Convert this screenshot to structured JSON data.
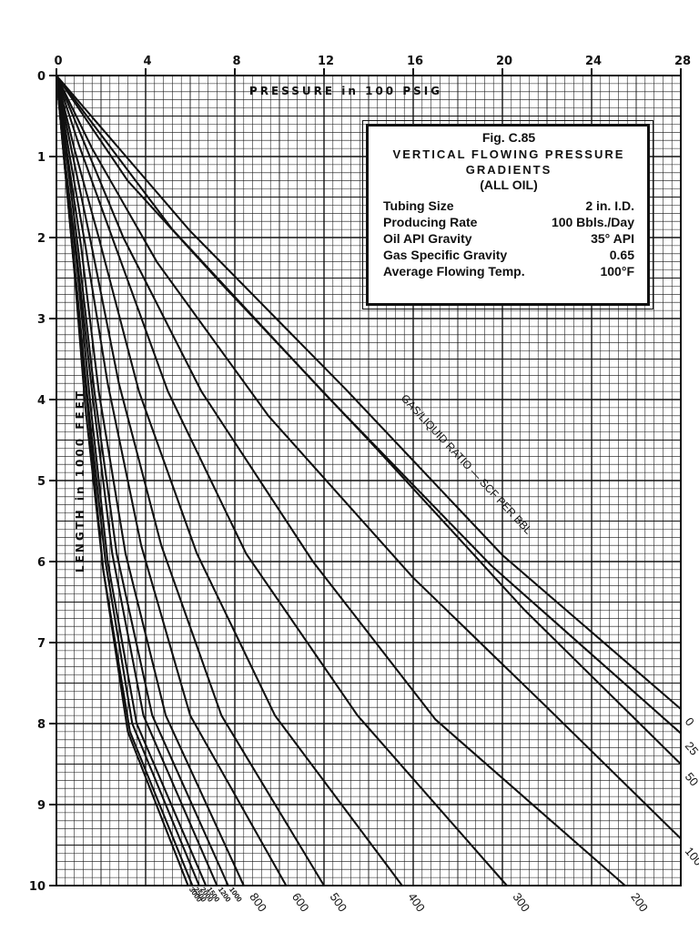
{
  "chart_data": {
    "type": "line",
    "title": "Fig. C.85",
    "subtitle": "VERTICAL FLOWING PRESSURE GRADIENTS",
    "subtitle2": "(ALL OIL)",
    "conditions": [
      {
        "label": "Tubing Size",
        "value": "2 in. I.D."
      },
      {
        "label": "Producing Rate",
        "value": "100 Bbls./Day"
      },
      {
        "label": "Oil API Gravity",
        "value": "35° API"
      },
      {
        "label": "Gas Specific Gravity",
        "value": "0.65"
      },
      {
        "label": "Average Flowing Temp.",
        "value": "100°F"
      }
    ],
    "xlabel": "PRESSURE in 100 PSIG",
    "ylabel": "LENGTH in 1000 FEET",
    "xlim": [
      0,
      28
    ],
    "ylim": [
      0,
      10
    ],
    "x_ticks": [
      "0",
      "4",
      "8",
      "12",
      "16",
      "20",
      "24",
      "28"
    ],
    "y_ticks": [
      "0",
      "1",
      "2",
      "3",
      "4",
      "5",
      "6",
      "7",
      "8",
      "9",
      "10"
    ],
    "y_inverted": true,
    "x_axis_position": "top",
    "grid": true,
    "series_annotation": "GAS/LIQUID RATIO — SCF PER BBL",
    "series": [
      {
        "name": "0",
        "label": "0",
        "points": [
          [
            0,
            0
          ],
          [
            6.0,
            1.92
          ],
          [
            13.0,
            3.88
          ],
          [
            20.0,
            5.92
          ],
          [
            28.0,
            7.82
          ]
        ]
      },
      {
        "name": "25",
        "label": "25",
        "points": [
          [
            0,
            0
          ],
          [
            5.2,
            1.9
          ],
          [
            12.0,
            3.92
          ],
          [
            19.5,
            6.05
          ],
          [
            28.0,
            8.12
          ]
        ]
      },
      {
        "name": "50",
        "label": "50",
        "points": [
          [
            0,
            0
          ],
          [
            3.2,
            1.3
          ],
          [
            7.5,
            2.6
          ],
          [
            14.0,
            4.5
          ],
          [
            21.0,
            6.6
          ],
          [
            28.0,
            8.5
          ]
        ]
      },
      {
        "name": "100",
        "label": "100",
        "points": [
          [
            0,
            0
          ],
          [
            1.6,
            0.9
          ],
          [
            4.5,
            2.3
          ],
          [
            9.5,
            4.2
          ],
          [
            16.0,
            6.2
          ],
          [
            22.0,
            7.8
          ],
          [
            28.0,
            9.42
          ]
        ]
      },
      {
        "name": "200",
        "label": "200",
        "points": [
          [
            0,
            0
          ],
          [
            1.2,
            0.8
          ],
          [
            3.0,
            2.0
          ],
          [
            6.5,
            3.9
          ],
          [
            11.5,
            6.0
          ],
          [
            17.0,
            7.95
          ],
          [
            25.5,
            10.0
          ]
        ]
      },
      {
        "name": "300",
        "label": "300",
        "points": [
          [
            0,
            0
          ],
          [
            1.0,
            0.85
          ],
          [
            2.5,
            2.0
          ],
          [
            5.0,
            3.9
          ],
          [
            8.5,
            5.9
          ],
          [
            13.5,
            7.9
          ],
          [
            20.2,
            10.0
          ]
        ]
      },
      {
        "name": "400",
        "label": "400",
        "points": [
          [
            0,
            0
          ],
          [
            0.8,
            0.9
          ],
          [
            1.9,
            2.0
          ],
          [
            3.7,
            3.9
          ],
          [
            6.3,
            5.9
          ],
          [
            9.8,
            7.9
          ],
          [
            15.5,
            10.0
          ]
        ]
      },
      {
        "name": "500",
        "label": "500",
        "points": [
          [
            0,
            0
          ],
          [
            0.7,
            0.95
          ],
          [
            1.5,
            2.0
          ],
          [
            2.8,
            3.8
          ],
          [
            4.7,
            5.8
          ],
          [
            7.4,
            7.9
          ],
          [
            12.0,
            10.0
          ]
        ]
      },
      {
        "name": "600",
        "label": "600",
        "points": [
          [
            0,
            0
          ],
          [
            0.6,
            1.0
          ],
          [
            1.3,
            2.1
          ],
          [
            2.3,
            3.8
          ],
          [
            3.8,
            5.8
          ],
          [
            6.0,
            7.9
          ],
          [
            10.3,
            10.0
          ]
        ]
      },
      {
        "name": "800",
        "label": "800",
        "points": [
          [
            0,
            0
          ],
          [
            0.5,
            1.0
          ],
          [
            1.1,
            2.1
          ],
          [
            1.9,
            3.9
          ],
          [
            3.1,
            5.9
          ],
          [
            4.9,
            7.9
          ],
          [
            8.4,
            10.0
          ]
        ]
      },
      {
        "name": "1000",
        "label": "1000",
        "points": [
          [
            0,
            0
          ],
          [
            0.5,
            1.1
          ],
          [
            1.0,
            2.2
          ],
          [
            1.7,
            3.9
          ],
          [
            2.7,
            5.9
          ],
          [
            4.3,
            7.9
          ],
          [
            7.7,
            10.0
          ]
        ]
      },
      {
        "name": "1200",
        "label": "1200",
        "points": [
          [
            0,
            0
          ],
          [
            0.4,
            1.1
          ],
          [
            0.9,
            2.2
          ],
          [
            1.6,
            3.9
          ],
          [
            2.5,
            5.9
          ],
          [
            3.9,
            7.9
          ],
          [
            7.2,
            10.0
          ]
        ]
      },
      {
        "name": "1500",
        "label": "1500",
        "points": [
          [
            0,
            0
          ],
          [
            0.4,
            1.1
          ],
          [
            0.9,
            2.3
          ],
          [
            1.5,
            4.0
          ],
          [
            2.3,
            6.0
          ],
          [
            3.6,
            8.0
          ],
          [
            6.7,
            10.0
          ]
        ]
      },
      {
        "name": "2000",
        "label": "2000",
        "points": [
          [
            0,
            0
          ],
          [
            0.4,
            1.2
          ],
          [
            0.8,
            2.3
          ],
          [
            1.4,
            4.0
          ],
          [
            2.2,
            6.0
          ],
          [
            3.4,
            8.0
          ],
          [
            6.4,
            10.0
          ]
        ]
      },
      {
        "name": "2500",
        "label": "2500",
        "points": [
          [
            0,
            0
          ],
          [
            0.4,
            1.2
          ],
          [
            0.8,
            2.4
          ],
          [
            1.4,
            4.1
          ],
          [
            2.1,
            6.1
          ],
          [
            3.3,
            8.1
          ],
          [
            6.1,
            10.0
          ]
        ]
      },
      {
        "name": "3000",
        "label": "3000",
        "points": [
          [
            0,
            0
          ],
          [
            0.4,
            1.2
          ],
          [
            0.8,
            2.4
          ],
          [
            1.3,
            4.1
          ],
          [
            2.1,
            6.1
          ],
          [
            3.2,
            8.1
          ],
          [
            5.9,
            10.0
          ]
        ]
      }
    ]
  }
}
